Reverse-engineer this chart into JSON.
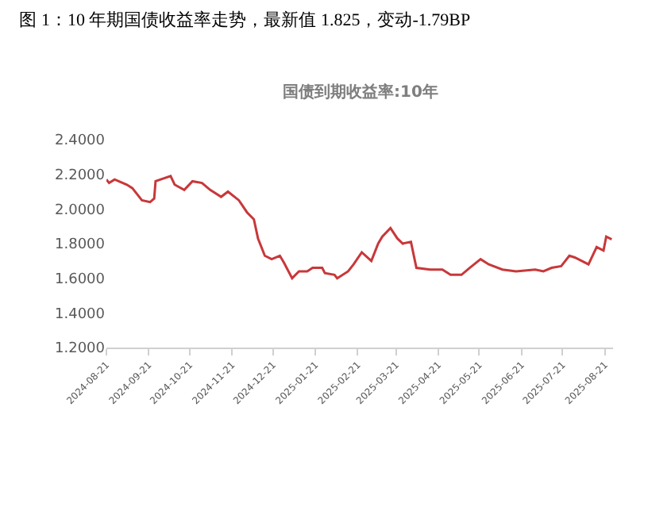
{
  "chart_data": {
    "type": "line",
    "title": "图 1：10 年期国债收益率走势，最新值 1.825，变动-1.79BP",
    "subtitle": "国债到期收益率:10年",
    "x": [
      "2024-08-21",
      "2024-08-23",
      "2024-08-27",
      "2024-09-05",
      "2024-09-09",
      "2024-09-16",
      "2024-09-22",
      "2024-09-25",
      "2024-09-26",
      "2024-10-07",
      "2024-10-10",
      "2024-10-17",
      "2024-10-23",
      "2024-10-30",
      "2024-11-05",
      "2024-11-13",
      "2024-11-18",
      "2024-11-26",
      "2024-12-02",
      "2024-12-07",
      "2024-12-10",
      "2024-12-15",
      "2024-12-20",
      "2024-12-26",
      "2024-12-29",
      "2025-01-04",
      "2025-01-09",
      "2025-01-15",
      "2025-01-19",
      "2025-01-26",
      "2025-01-28",
      "2025-02-04",
      "2025-02-06",
      "2025-02-14",
      "2025-02-18",
      "2025-02-24",
      "2025-03-03",
      "2025-03-08",
      "2025-03-11",
      "2025-03-17",
      "2025-03-22",
      "2025-03-26",
      "2025-04-01",
      "2025-04-05",
      "2025-04-15",
      "2025-04-24",
      "2025-04-30",
      "2025-05-08",
      "2025-05-14",
      "2025-05-22",
      "2025-05-28",
      "2025-06-07",
      "2025-06-17",
      "2025-07-01",
      "2025-07-07",
      "2025-07-13",
      "2025-07-20",
      "2025-07-26",
      "2025-07-30",
      "2025-08-09",
      "2025-08-15",
      "2025-08-20",
      "2025-08-22",
      "2025-08-26"
    ],
    "series": [
      {
        "color": "#c8383a",
        "values": [
          2.17,
          2.15,
          2.17,
          2.14,
          2.12,
          2.05,
          2.04,
          2.06,
          2.16,
          2.19,
          2.14,
          2.11,
          2.16,
          2.15,
          2.11,
          2.07,
          2.1,
          2.05,
          1.98,
          1.94,
          1.83,
          1.73,
          1.71,
          1.73,
          1.69,
          1.6,
          1.64,
          1.64,
          1.66,
          1.66,
          1.63,
          1.62,
          1.6,
          1.64,
          1.68,
          1.75,
          1.7,
          1.8,
          1.84,
          1.89,
          1.83,
          1.8,
          1.81,
          1.66,
          1.65,
          1.65,
          1.62,
          1.62,
          1.66,
          1.71,
          1.68,
          1.65,
          1.64,
          1.65,
          1.64,
          1.66,
          1.67,
          1.73,
          1.72,
          1.68,
          1.78,
          1.76,
          1.84,
          1.825
        ]
      }
    ],
    "xlim": [
      "2024-08-21",
      "2025-08-27"
    ],
    "xticks": [
      "2024-08-21",
      "2024-09-21",
      "2024-10-21",
      "2024-11-21",
      "2024-12-21",
      "2025-01-21",
      "2025-02-21",
      "2025-03-21",
      "2025-04-21",
      "2025-05-21",
      "2025-06-21",
      "2025-07-21",
      "2025-08-21"
    ],
    "ylim": [
      1.2,
      2.4
    ],
    "yticks": [
      {
        "value": 1.2,
        "label": "1.2000"
      },
      {
        "value": 1.4,
        "label": "1.4000"
      },
      {
        "value": 1.6,
        "label": "1.6000"
      },
      {
        "value": 1.8,
        "label": "1.8000"
      },
      {
        "value": 2.0,
        "label": "2.0000"
      },
      {
        "value": 2.2,
        "label": "2.2000"
      },
      {
        "value": 2.4,
        "label": "2.4000"
      }
    ],
    "grid": false,
    "marker": "none",
    "line_style": "solid"
  }
}
